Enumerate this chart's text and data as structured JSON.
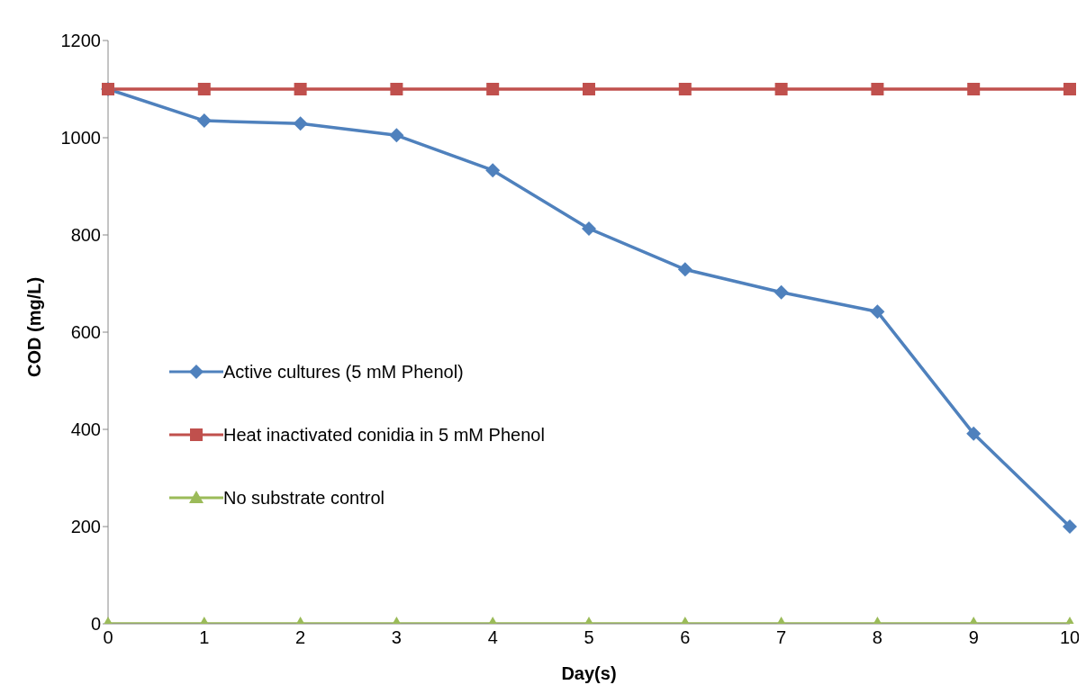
{
  "chart_data": {
    "type": "line",
    "xlabel": "Day(s)",
    "ylabel": "COD (mg/L)",
    "categories": [
      "0",
      "1",
      "2",
      "3",
      "4",
      "5",
      "6",
      "7",
      "8",
      "9",
      "10"
    ],
    "ylim": [
      0,
      1200
    ],
    "yticks": [
      0,
      200,
      400,
      600,
      800,
      1000,
      1200
    ],
    "grid": false,
    "legend": "left",
    "line_style": "solid",
    "series": [
      {
        "name": "Active cultures (5 mM Phenol)",
        "color": "#4f81bd",
        "marker": "diamond",
        "values": [
          1100,
          1035,
          1029,
          1005,
          933,
          813,
          729,
          682,
          642,
          391,
          200
        ]
      },
      {
        "name": "Heat inactivated conidia in 5 mM Phenol",
        "color": "#c0504d",
        "marker": "square",
        "values": [
          1100,
          1100,
          1100,
          1100,
          1100,
          1100,
          1100,
          1100,
          1100,
          1100,
          1100
        ]
      },
      {
        "name": "No substrate control",
        "color": "#9bbb59",
        "marker": "triangle",
        "values": [
          0,
          0,
          0,
          0,
          0,
          0,
          0,
          0,
          0,
          0,
          0
        ]
      }
    ]
  }
}
